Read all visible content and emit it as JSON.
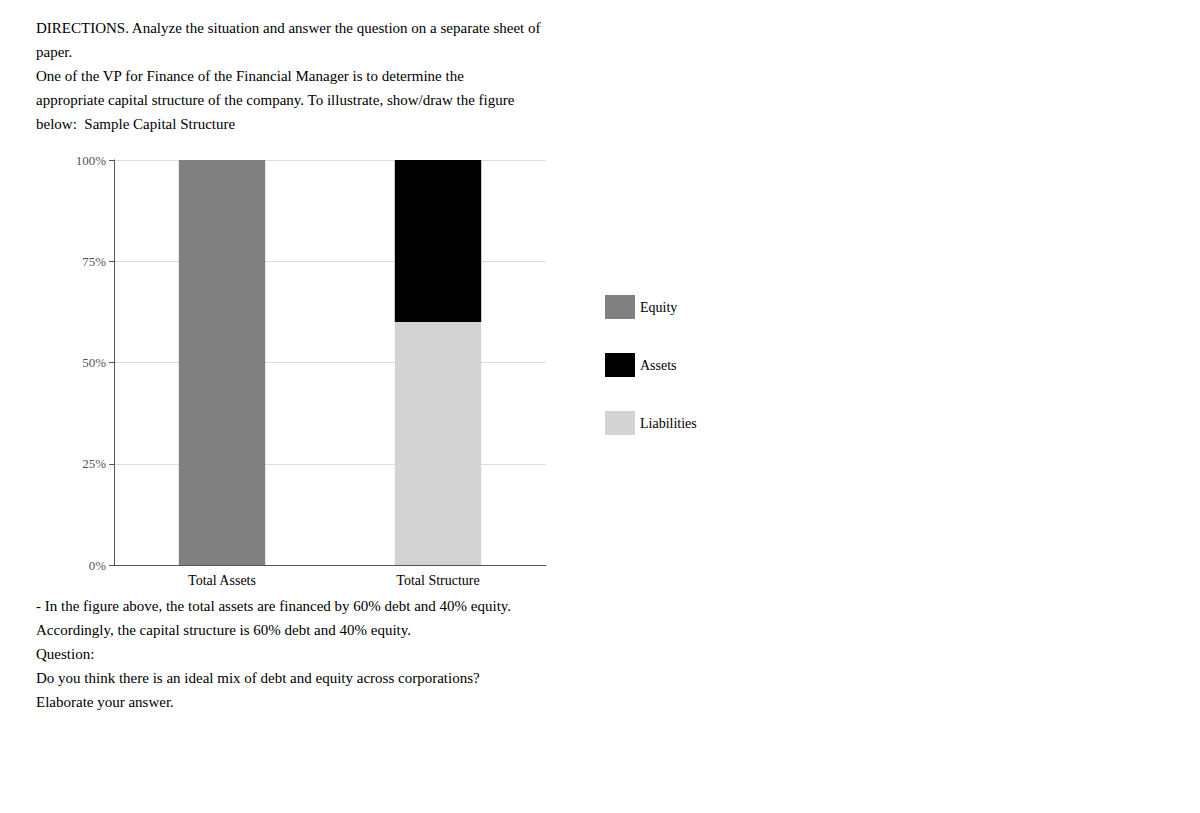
{
  "chart_data": {
    "type": "bar",
    "categories": [
      "Total Assets",
      "Total Structure"
    ],
    "series": [
      {
        "name": "Equity",
        "color": "#808080",
        "values": [
          1.0,
          0.0
        ]
      },
      {
        "name": "Assets",
        "color": "#000000",
        "values": [
          0.0,
          0.4
        ]
      },
      {
        "name": "Liabilities",
        "color": "#d3d3d3",
        "values": [
          0.0,
          0.6
        ]
      }
    ],
    "stacked": true,
    "ylim": [
      0,
      1.0
    ],
    "yticks": [
      {
        "value": 0,
        "label": "0%"
      },
      {
        "value": 0.25,
        "label": "25%"
      },
      {
        "value": 0.5,
        "label": "50%"
      },
      {
        "value": 0.75,
        "label": "75%"
      },
      {
        "value": 1.0,
        "label": "100%"
      }
    ],
    "grid": true,
    "legend": "right",
    "annotations": [
      "DIRECTIONS. Analyze the situation and answer the question on a separate sheet of",
      "paper.",
      "One of the VP for Finance of the Financial Manager is to determine the",
      "appropriate capital structure of the company. To illustrate, show/draw the figure",
      "below:  Sample Capital Structure",
      "- In the figure above, the total assets are financed by 60% debt and 40% equity.",
      "Accordingly, the capital structure is 60% debt and 40% equity.",
      "Question:",
      "Do you think there is an ideal mix of debt and equity across corporations?",
      "Elaborate your answer."
    ]
  }
}
